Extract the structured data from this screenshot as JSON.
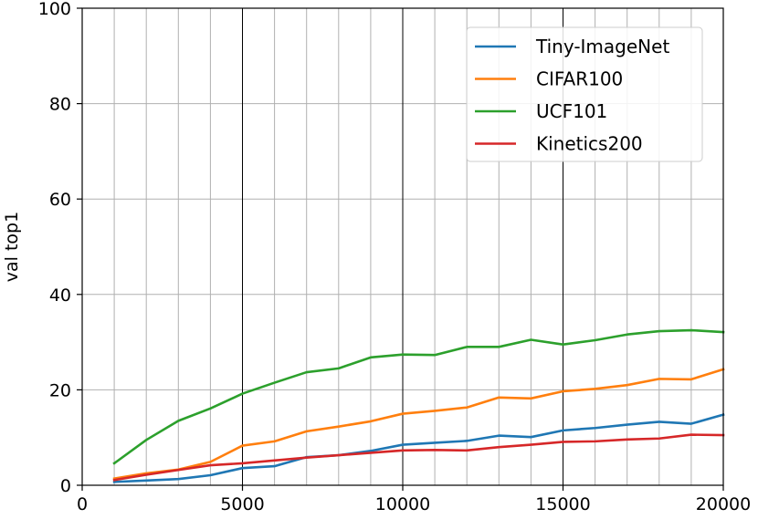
{
  "chart_data": {
    "type": "line",
    "title": "",
    "xlabel": "",
    "ylabel": "val top1",
    "xlim": [
      0,
      20000
    ],
    "ylim": [
      0,
      100
    ],
    "xticks": [
      0,
      5000,
      10000,
      15000,
      20000
    ],
    "yticks": [
      0,
      20,
      40,
      60,
      80,
      100
    ],
    "grid": true,
    "minor_x_gridlines": [
      1000,
      2000,
      3000,
      4000,
      6000,
      7000,
      8000,
      9000,
      11000,
      12000,
      13000,
      14000,
      16000,
      17000,
      18000,
      19000
    ],
    "legend_position": "top-right",
    "x": [
      1000,
      2000,
      3000,
      4000,
      5000,
      6000,
      7000,
      8000,
      9000,
      10000,
      11000,
      12000,
      13000,
      14000,
      15000,
      16000,
      17000,
      18000,
      19000,
      20000
    ],
    "series": [
      {
        "name": "Tiny-ImageNet",
        "color": "#1f77b4",
        "values": [
          0.7,
          1.0,
          1.3,
          2.1,
          3.6,
          4.0,
          5.9,
          6.3,
          7.2,
          8.5,
          8.9,
          9.3,
          10.4,
          10.1,
          11.5,
          12.0,
          12.7,
          13.3,
          12.9,
          14.8
        ]
      },
      {
        "name": "CIFAR100",
        "color": "#ff7f0e",
        "values": [
          1.4,
          2.5,
          3.3,
          4.9,
          8.3,
          9.2,
          11.3,
          12.3,
          13.4,
          15.0,
          15.6,
          16.3,
          18.4,
          18.2,
          19.7,
          20.2,
          21.0,
          22.3,
          22.2,
          24.3
        ]
      },
      {
        "name": "UCF101",
        "color": "#2ca02c",
        "values": [
          4.6,
          9.5,
          13.5,
          16.1,
          19.2,
          21.5,
          23.7,
          24.5,
          26.8,
          27.4,
          27.3,
          29.0,
          29.0,
          30.5,
          29.5,
          30.4,
          31.6,
          32.3,
          32.5,
          32.1
        ]
      },
      {
        "name": "Kinetics200",
        "color": "#d62728",
        "values": [
          1.1,
          2.2,
          3.2,
          4.2,
          4.6,
          5.2,
          5.8,
          6.3,
          6.8,
          7.3,
          7.4,
          7.3,
          8.0,
          8.5,
          9.1,
          9.2,
          9.6,
          9.8,
          10.6,
          10.5
        ]
      }
    ]
  }
}
